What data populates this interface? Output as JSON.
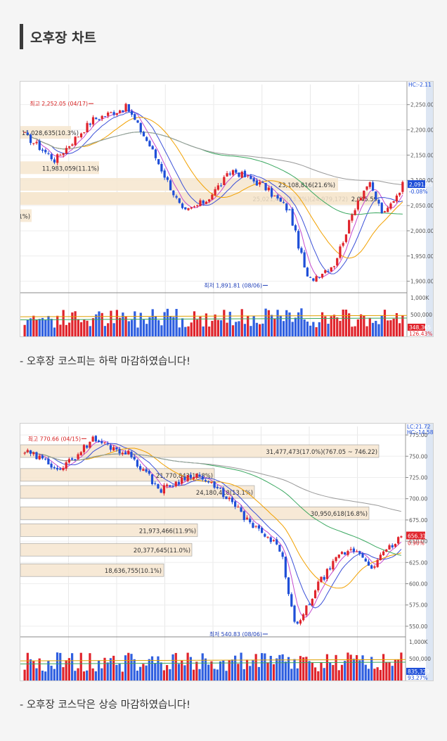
{
  "section": {
    "title": "오후장 차트"
  },
  "charts": [
    {
      "caption": "- 오후장 코스피는 하락 마감하였습니다!",
      "chart_data": {
        "type": "candlestick",
        "title": "",
        "ylim": [
          1880,
          2290
        ],
        "y_ticks": [
          "2,250.00",
          "2,200.00",
          "2,150.00",
          "2,100.00",
          "2,050.00",
          "2,000.00",
          "1,950.00",
          "1,900.00"
        ],
        "y_tick_values": [
          2250,
          2200,
          2150,
          2100,
          2050,
          2000,
          1950,
          1900
        ],
        "top_label": "HC:-2.11",
        "current_value": "2,091.85",
        "current_change": "-0.08%",
        "high_label": "최고 2,252.05 (04/17)",
        "high_value": 2252.05,
        "low_label": "최저 1,891.81 (08/06)",
        "low_value": 1891.81,
        "volume_profile": [
          {
            "label": "11,028,635(10.3%)",
            "price": 2195
          },
          {
            "label": "11,983,059(11.1%)",
            "price": 2125
          },
          {
            "label": "23,108,816(21.6%)",
            "price": 2092
          },
          {
            "label": "25,021,404(23.3%)(24,979,172)",
            "price": 2064
          },
          {
            "label": "2,045.59",
            "price": 2064
          },
          {
            "label": "1%)",
            "price": 2030
          }
        ],
        "volume_ticks": [
          "1,000K",
          "500,000"
        ],
        "volume_current": "348,365",
        "volume_pct": "126.43%"
      }
    },
    {
      "caption": "- 오후장 코스닥은 상승 마감하였습니다!",
      "chart_data": {
        "type": "candlestick",
        "title": "",
        "ylim": [
          540,
          785
        ],
        "y_ticks": [
          "775.00",
          "750.00",
          "725.00",
          "700.00",
          "675.00",
          "650.00",
          "625.00",
          "600.00",
          "575.00",
          "550.00"
        ],
        "y_tick_values": [
          775,
          750,
          725,
          700,
          675,
          650,
          625,
          600,
          575,
          550
        ],
        "top_label": "LC:21.72",
        "top_label2": "HC:-14.58",
        "current_value": "656.31",
        "current_change": "0.90%",
        "high_label": "최고 770.66 (04/15)",
        "high_value": 770.66,
        "low_label": "최저 540.83 (08/06)",
        "low_value": 540.83,
        "volume_profile": [
          {
            "label": "31,477,473(17.0%)(767.05 ~ 746.22)",
            "price": 756
          },
          {
            "label": "21,770,843(11.8%)",
            "price": 728
          },
          {
            "label": "24,180,418(13.1%)",
            "price": 708
          },
          {
            "label": "30,950,618(16.8%)",
            "price": 683
          },
          {
            "label": "21,973,466(11.9%)",
            "price": 663
          },
          {
            "label": "20,377,645(11.0%)",
            "price": 640
          },
          {
            "label": "18,636,755(10.1%)",
            "price": 616
          }
        ],
        "volume_ticks": [
          "1,000K",
          "500,000"
        ],
        "volume_current": "835,329",
        "volume_pct": "93.27%"
      }
    }
  ]
}
